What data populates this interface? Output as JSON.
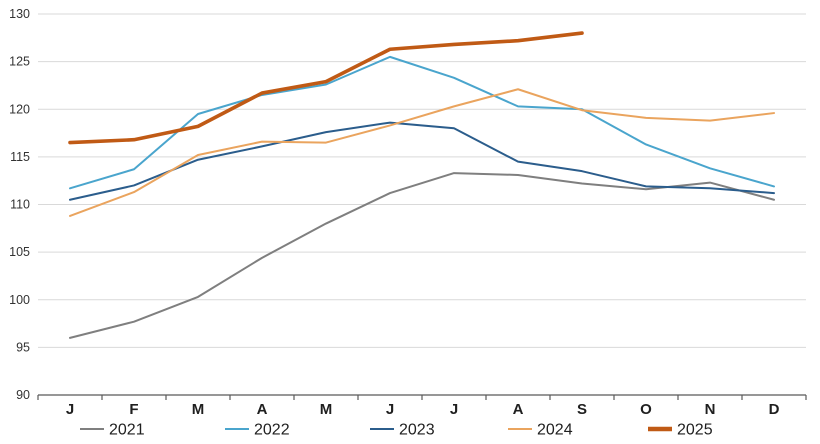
{
  "chart_data": {
    "type": "line",
    "title": "",
    "categories": [
      "J",
      "F",
      "M",
      "A",
      "M",
      "J",
      "J",
      "A",
      "S",
      "O",
      "N",
      "D"
    ],
    "y_axis": {
      "min": 90,
      "max": 130,
      "step": 5,
      "tick_labels": [
        "90",
        "95",
        "100",
        "105",
        "110",
        "115",
        "120",
        "125",
        "130"
      ]
    },
    "grid": "horizontal",
    "grid_color": "#D9D9D9",
    "axis_color": "#595959",
    "legend_position": "bottom",
    "series": [
      {
        "name": "2021",
        "color": "#7F7F7F",
        "width": 2,
        "values": [
          96.0,
          97.7,
          100.3,
          104.4,
          108.0,
          111.2,
          113.3,
          113.1,
          112.2,
          111.6,
          112.3,
          110.5
        ]
      },
      {
        "name": "2022",
        "color": "#4AA5CD",
        "width": 2,
        "values": [
          111.7,
          113.7,
          119.5,
          121.5,
          122.6,
          125.5,
          123.3,
          120.3,
          120.0,
          116.3,
          113.8,
          111.9
        ]
      },
      {
        "name": "2023",
        "color": "#2B5D8C",
        "width": 2,
        "values": [
          110.5,
          112.0,
          114.7,
          116.1,
          117.6,
          118.6,
          118.0,
          114.5,
          113.5,
          111.9,
          111.7,
          111.2
        ]
      },
      {
        "name": "2024",
        "color": "#EAA45E",
        "width": 2,
        "values": [
          108.8,
          111.3,
          115.2,
          116.6,
          116.5,
          118.3,
          120.3,
          122.1,
          119.9,
          119.1,
          118.8,
          119.6
        ]
      },
      {
        "name": "2025",
        "color": "#C05A15",
        "width": 3.6,
        "values": [
          116.5,
          116.8,
          118.2,
          121.7,
          122.9,
          126.3,
          126.8,
          127.2,
          128.0
        ]
      }
    ]
  }
}
